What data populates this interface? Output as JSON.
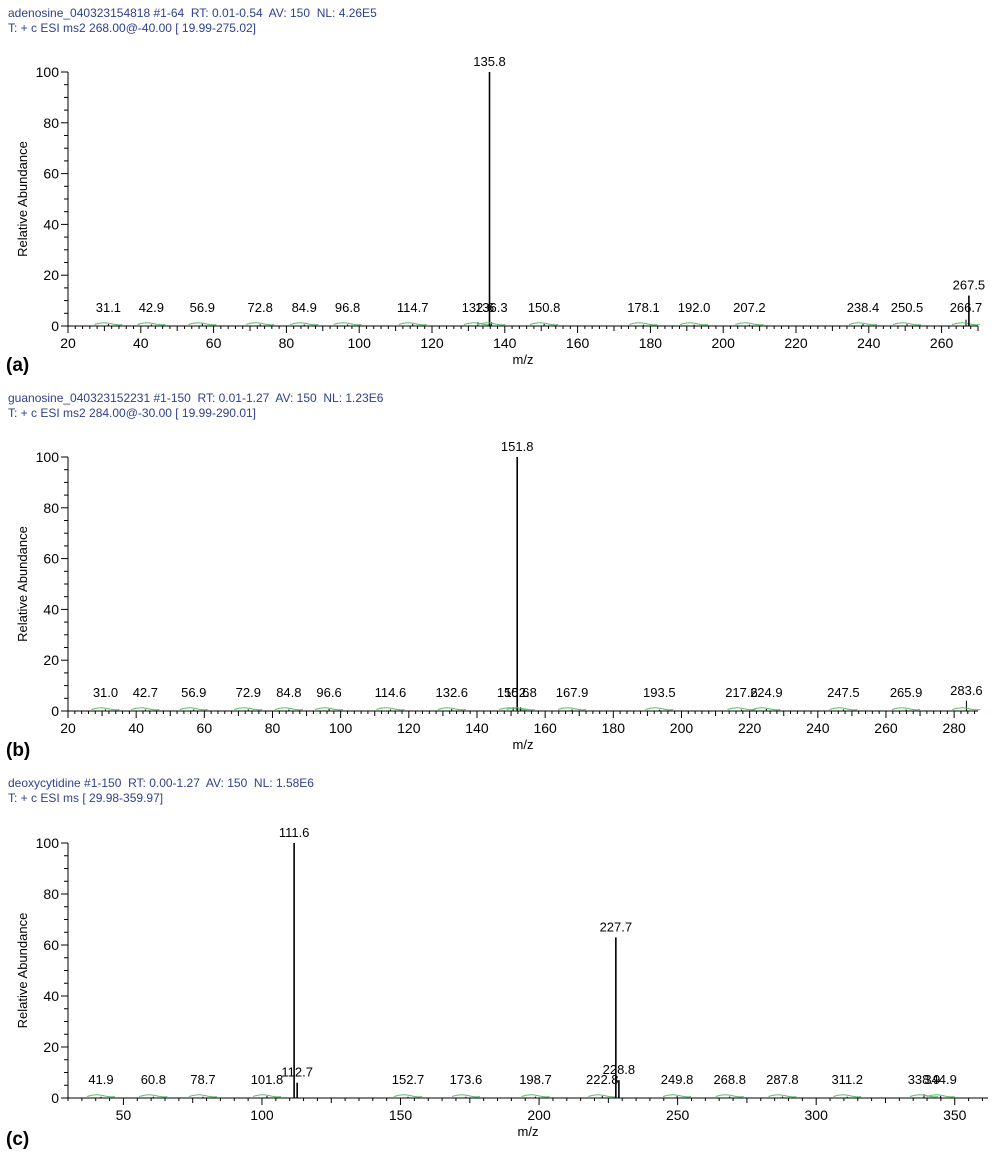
{
  "panels": [
    {
      "id": "a",
      "tag": "(a)",
      "header_line1": "adenosine_040323154818 #1-64  RT: 0.01-0.54  AV: 150  NL: 4.26E5",
      "header_line2": "T: + c ESI ms2 268.00@-40.00 [ 19.99-275.02]"
    },
    {
      "id": "b",
      "tag": "(b)",
      "header_line1": "guanosine_040323152231 #1-150  RT: 0.01-1.27  AV: 150  NL: 1.23E6",
      "header_line2": "T: + c ESI ms2 284.00@-30.00 [ 19.99-290.01]"
    },
    {
      "id": "c",
      "tag": "(c)",
      "header_line1": "deoxycytidine #1-150  RT: 0.00-1.27  AV: 150  NL: 1.58E6",
      "header_line2": "T: + c ESI ms [ 29.98-359.97]"
    }
  ],
  "colors": {
    "axis": "#000000",
    "peak": "#000000",
    "header": "#2f3f8f",
    "baseline_marker": "#5cbf6a"
  },
  "chart_data": [
    {
      "type": "bar",
      "ylabel": "Relative Abundance",
      "xlabel": "m/z",
      "xlim": [
        20,
        270
      ],
      "ylim": [
        0,
        100
      ],
      "x_ticks": [
        20,
        40,
        60,
        80,
        100,
        120,
        140,
        160,
        180,
        200,
        220,
        240,
        260
      ],
      "y_ticks": [
        0,
        20,
        40,
        60,
        80,
        100
      ],
      "peaks": [
        {
          "mz": 31.1,
          "intensity": 0.8,
          "label": "31.1"
        },
        {
          "mz": 42.9,
          "intensity": 0.6,
          "label": "42.9"
        },
        {
          "mz": 56.9,
          "intensity": 1.0,
          "label": "56.9"
        },
        {
          "mz": 72.8,
          "intensity": 0.7,
          "label": "72.8"
        },
        {
          "mz": 84.9,
          "intensity": 0.6,
          "label": "84.9"
        },
        {
          "mz": 96.8,
          "intensity": 0.6,
          "label": "96.8"
        },
        {
          "mz": 114.7,
          "intensity": 0.8,
          "label": "114.7"
        },
        {
          "mz": 132.6,
          "intensity": 1.5,
          "label": "132.6"
        },
        {
          "mz": 135.8,
          "intensity": 100,
          "label": "135.8"
        },
        {
          "mz": 136.3,
          "intensity": 1.5,
          "label": "136.3"
        },
        {
          "mz": 150.8,
          "intensity": 0.8,
          "label": "150.8"
        },
        {
          "mz": 178.1,
          "intensity": 0.5,
          "label": "178.1"
        },
        {
          "mz": 192.0,
          "intensity": 0.5,
          "label": "192.0"
        },
        {
          "mz": 207.2,
          "intensity": 0.5,
          "label": "207.2"
        },
        {
          "mz": 238.4,
          "intensity": 0.8,
          "label": "238.4"
        },
        {
          "mz": 250.5,
          "intensity": 0.8,
          "label": "250.5"
        },
        {
          "mz": 266.7,
          "intensity": 2.5,
          "label": "266.7"
        },
        {
          "mz": 267.5,
          "intensity": 12,
          "label": "267.5"
        }
      ]
    },
    {
      "type": "bar",
      "ylabel": "Relative Abundance",
      "xlabel": "m/z",
      "xlim": [
        20,
        287
      ],
      "ylim": [
        0,
        100
      ],
      "x_ticks": [
        20,
        40,
        60,
        80,
        100,
        120,
        140,
        160,
        180,
        200,
        220,
        240,
        260,
        280
      ],
      "y_ticks": [
        0,
        20,
        40,
        60,
        80,
        100
      ],
      "peaks": [
        {
          "mz": 31.0,
          "intensity": 0.6,
          "label": "31.0"
        },
        {
          "mz": 42.7,
          "intensity": 0.6,
          "label": "42.7"
        },
        {
          "mz": 56.9,
          "intensity": 0.6,
          "label": "56.9"
        },
        {
          "mz": 72.9,
          "intensity": 0.6,
          "label": "72.9"
        },
        {
          "mz": 84.8,
          "intensity": 0.6,
          "label": "84.8"
        },
        {
          "mz": 96.6,
          "intensity": 0.8,
          "label": "96.6"
        },
        {
          "mz": 114.6,
          "intensity": 0.6,
          "label": "114.6"
        },
        {
          "mz": 132.6,
          "intensity": 0.8,
          "label": "132.6"
        },
        {
          "mz": 150.6,
          "intensity": 1.5,
          "label": "150.6"
        },
        {
          "mz": 151.8,
          "intensity": 100,
          "label": "151.8"
        },
        {
          "mz": 152.8,
          "intensity": 1.5,
          "label": "152.8"
        },
        {
          "mz": 167.9,
          "intensity": 0.6,
          "label": "167.9"
        },
        {
          "mz": 193.5,
          "intensity": 0.5,
          "label": "193.5"
        },
        {
          "mz": 217.6,
          "intensity": 0.6,
          "label": "217.6"
        },
        {
          "mz": 224.9,
          "intensity": 0.8,
          "label": "224.9"
        },
        {
          "mz": 247.5,
          "intensity": 0.6,
          "label": "247.5"
        },
        {
          "mz": 265.9,
          "intensity": 0.6,
          "label": "265.9"
        },
        {
          "mz": 283.6,
          "intensity": 4,
          "label": "283.6"
        }
      ]
    },
    {
      "type": "bar",
      "ylabel": "Relative Abundance",
      "xlabel": "m/z",
      "xlim": [
        30,
        362
      ],
      "ylim": [
        0,
        100
      ],
      "x_ticks": [
        50,
        100,
        150,
        200,
        250,
        300,
        350
      ],
      "y_ticks": [
        0,
        20,
        40,
        60,
        80,
        100
      ],
      "peaks": [
        {
          "mz": 41.9,
          "intensity": 0.5,
          "label": "41.9"
        },
        {
          "mz": 60.8,
          "intensity": 0.5,
          "label": "60.8"
        },
        {
          "mz": 78.7,
          "intensity": 0.5,
          "label": "78.7"
        },
        {
          "mz": 101.8,
          "intensity": 0.8,
          "label": "101.8"
        },
        {
          "mz": 111.6,
          "intensity": 100,
          "label": "111.6"
        },
        {
          "mz": 112.7,
          "intensity": 6,
          "label": "112.7"
        },
        {
          "mz": 152.7,
          "intensity": 0.5,
          "label": "152.7"
        },
        {
          "mz": 173.6,
          "intensity": 0.5,
          "label": "173.6"
        },
        {
          "mz": 198.7,
          "intensity": 0.5,
          "label": "198.7"
        },
        {
          "mz": 222.8,
          "intensity": 0.8,
          "label": "222.8"
        },
        {
          "mz": 227.7,
          "intensity": 63,
          "label": "227.7"
        },
        {
          "mz": 228.8,
          "intensity": 7,
          "label": "228.8"
        },
        {
          "mz": 249.8,
          "intensity": 0.8,
          "label": "249.8"
        },
        {
          "mz": 268.8,
          "intensity": 0.6,
          "label": "268.8"
        },
        {
          "mz": 287.8,
          "intensity": 0.6,
          "label": "287.8"
        },
        {
          "mz": 311.2,
          "intensity": 0.5,
          "label": "311.2"
        },
        {
          "mz": 338.9,
          "intensity": 1.5,
          "label": "338.9"
        },
        {
          "mz": 344.9,
          "intensity": 0.8,
          "label": "344.9"
        }
      ]
    }
  ]
}
